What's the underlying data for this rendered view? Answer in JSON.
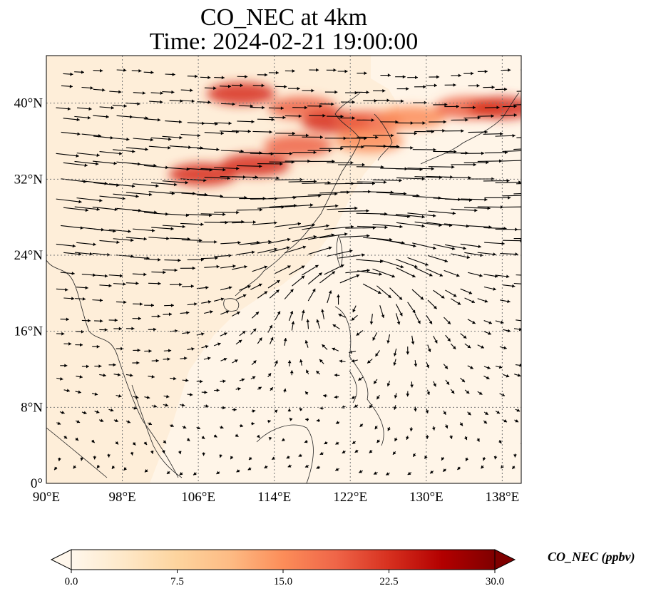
{
  "title": {
    "line1": "CO_NEC at 4km",
    "line2": "Time: 2024-02-21 19:00:00"
  },
  "map": {
    "lon_range": [
      90,
      140
    ],
    "lat_range": [
      0,
      45
    ],
    "x_ticks": [
      "90°E",
      "98°E",
      "106°E",
      "114°E",
      "122°E",
      "130°E",
      "138°E"
    ],
    "y_ticks": [
      "0°",
      "8°N",
      "16°N",
      "24°N",
      "32°N",
      "40°N"
    ],
    "gridlines": "dotted"
  },
  "colorbar": {
    "label": "CO_NEC (ppbv)",
    "ticks": [
      "0.0",
      "7.5",
      "15.0",
      "22.5",
      "30.0"
    ],
    "min": 0,
    "max": 30,
    "colormap": [
      "#fff7ec",
      "#fee8c8",
      "#fdd49e",
      "#fdbb84",
      "#fc8d59",
      "#ef6548",
      "#d7301f",
      "#b30000",
      "#7f0000"
    ]
  },
  "chart_data": {
    "type": "heatmap",
    "variable": "CO_NEC",
    "units": "ppbv",
    "vmin": 0,
    "vmax": 30,
    "plumes": [
      {
        "lon": 110.5,
        "lat": 41.0,
        "value": 24
      },
      {
        "lon": 117.0,
        "lat": 39.5,
        "value": 20
      },
      {
        "lon": 120.5,
        "lat": 38.0,
        "value": 22
      },
      {
        "lon": 124.0,
        "lat": 38.0,
        "value": 18
      },
      {
        "lon": 128.5,
        "lat": 38.5,
        "value": 16
      },
      {
        "lon": 134.5,
        "lat": 39.5,
        "value": 20
      },
      {
        "lon": 138.0,
        "lat": 39.5,
        "value": 22
      },
      {
        "lon": 106.5,
        "lat": 32.5,
        "value": 22
      },
      {
        "lon": 112.0,
        "lat": 33.5,
        "value": 24
      },
      {
        "lon": 116.5,
        "lat": 35.5,
        "value": 18
      },
      {
        "lon": 124.0,
        "lat": 36.0,
        "value": 14
      }
    ],
    "wind_vectors": "quiver arrows, strong westerlies north of 20°N, anticyclonic circulation near 122°E 20°N"
  }
}
